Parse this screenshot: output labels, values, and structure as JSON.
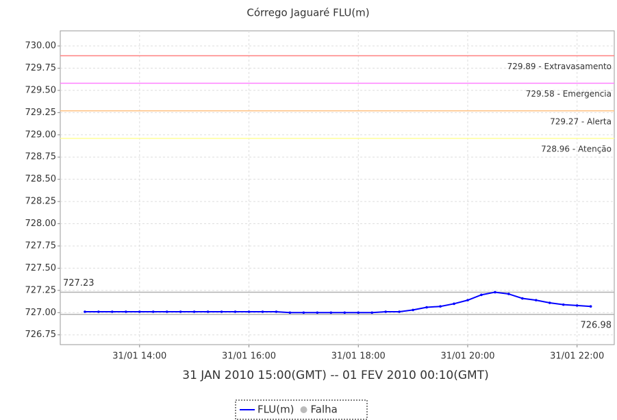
{
  "chart_data": {
    "type": "line",
    "title": "Córrego Jaguaré FLU(m)",
    "x_label": "31 JAN 2010 15:00(GMT) -- 01 FEV 2010 00:10(GMT)",
    "x": [
      13,
      13.25,
      13.5,
      13.75,
      14,
      14.25,
      14.5,
      14.75,
      15,
      15.25,
      15.5,
      15.75,
      16,
      16.25,
      16.5,
      16.75,
      17,
      17.25,
      17.5,
      17.75,
      18,
      18.25,
      18.5,
      18.75,
      19,
      19.25,
      19.5,
      19.75,
      20,
      20.25,
      20.5,
      20.75,
      21,
      21.25,
      21.5,
      21.75,
      22,
      22.25
    ],
    "series": [
      {
        "name": "FLU(m)",
        "color": "#0000ff",
        "values": [
          727.01,
          727.01,
          727.01,
          727.01,
          727.01,
          727.01,
          727.01,
          727.01,
          727.01,
          727.01,
          727.01,
          727.01,
          727.01,
          727.01,
          727.01,
          727.0,
          727.0,
          727.0,
          727.0,
          727.0,
          727.0,
          727.0,
          727.01,
          727.01,
          727.03,
          727.06,
          727.07,
          727.1,
          727.14,
          727.2,
          727.23,
          727.21,
          727.16,
          727.14,
          727.11,
          727.09,
          727.08,
          727.07
        ]
      },
      {
        "name": "Falha",
        "color": "#bbbbbb",
        "values": [
          null,
          null,
          null,
          null,
          null,
          null,
          null,
          null,
          null,
          null,
          null,
          null,
          null,
          null,
          null,
          null,
          null,
          null,
          null,
          null,
          null,
          null,
          null,
          null,
          null,
          null,
          null,
          null,
          null,
          null,
          null,
          null,
          null,
          null,
          null,
          null,
          null,
          null
        ]
      }
    ],
    "xlim": [
      12.55,
      22.68
    ],
    "xticks": [
      {
        "value": 14,
        "label": "31/01 14:00"
      },
      {
        "value": 16,
        "label": "31/01 16:00"
      },
      {
        "value": 18,
        "label": "31/01 18:00"
      },
      {
        "value": 20,
        "label": "31/01 20:00"
      },
      {
        "value": 22,
        "label": "31/01 22:00"
      }
    ],
    "ylim": [
      726.64,
      730.17
    ],
    "yticks": [
      {
        "value": 730,
        "label": "730.00"
      },
      729.75,
      {
        "value": 729.5,
        "label": "729.50"
      },
      729.25,
      {
        "value": 729,
        "label": "729.00"
      },
      728.75,
      {
        "value": 728.5,
        "label": "728.50"
      },
      728.25,
      {
        "value": 728,
        "label": "728.00"
      },
      727.75,
      {
        "value": 727.5,
        "label": "727.50"
      },
      727.25,
      {
        "value": 727,
        "label": "727.00"
      },
      726.75
    ],
    "grid": true,
    "reference_lines": [
      {
        "value": 729.89,
        "label": "729.89 - Extravasamento",
        "color": "#ff8080"
      },
      {
        "value": 729.58,
        "label": "729.58 - Emergencia",
        "color": "#ff80ff"
      },
      {
        "value": 729.27,
        "label": "729.27 - Alerta",
        "color": "#ffc080"
      },
      {
        "value": 728.96,
        "label": "728.96 - Atenção",
        "color": "#ffff99"
      },
      {
        "value": 727.23,
        "color": "#b0b0b0",
        "label_position": "top-left"
      },
      {
        "value": 726.98,
        "color": "#b0b0b0",
        "label_position": "bottom-right"
      }
    ],
    "legend": "bottom"
  }
}
